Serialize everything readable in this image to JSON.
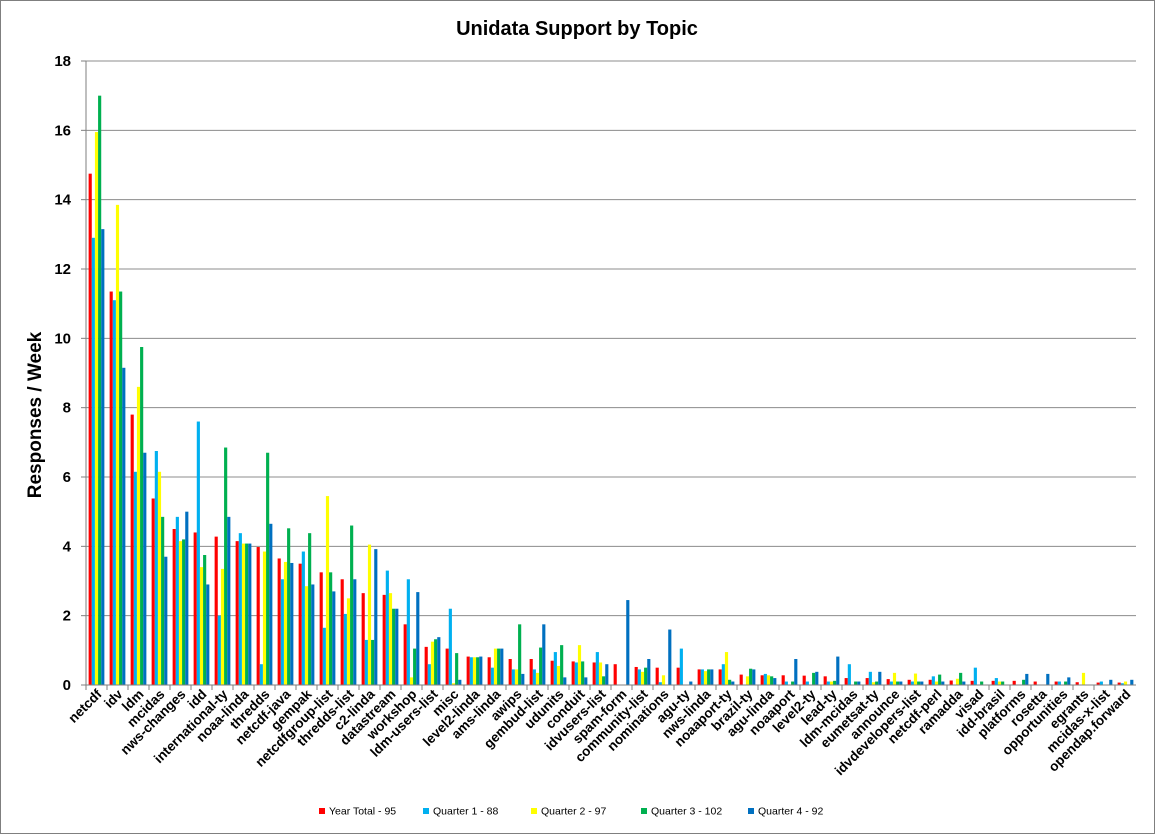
{
  "chart_data": {
    "type": "bar",
    "title": "Unidata Support by Topic",
    "xlabel": "",
    "ylabel": "Responses / Week",
    "ylim": [
      0,
      18
    ],
    "yticks": [
      0,
      2,
      4,
      6,
      8,
      10,
      12,
      14,
      16,
      18
    ],
    "grid": true,
    "legend_position": "bottom",
    "categories": [
      "netcdf",
      "idv",
      "ldm",
      "mcidas",
      "nws-changes",
      "idd",
      "international-ty",
      "noaa-linda",
      "thredds",
      "netcdf-java",
      "gempak",
      "netcdfgroup-list",
      "thredds-list",
      "c2-linda",
      "datastream",
      "workshop",
      "ldm-users-list",
      "misc",
      "level2-linda",
      "ams-linda",
      "awips",
      "gembud-list",
      "udunits",
      "conduit",
      "idvusers-list",
      "spam-form",
      "community-list",
      "nominations",
      "agu-ty",
      "nws-linda",
      "noaaport-ty",
      "brazil-ty",
      "agu-linda",
      "noaaport",
      "level2-ty",
      "lead-ty",
      "ldm-mcidas",
      "eumetsat-ty",
      "announce",
      "idvdevelopers-list",
      "netcdf-perl",
      "ramadda",
      "visad",
      "idd-brasil",
      "platforms",
      "rosetta",
      "opportunities",
      "egrants",
      "mcidas-x-list",
      "opendap.forward"
    ],
    "series": [
      {
        "name": "Year Total - 95",
        "color": "#ff0000",
        "values": [
          14.75,
          11.35,
          7.8,
          5.38,
          4.5,
          4.4,
          4.28,
          4.15,
          3.98,
          3.65,
          3.5,
          3.25,
          3.05,
          2.65,
          2.6,
          1.75,
          1.1,
          1.05,
          0.82,
          0.8,
          0.75,
          0.75,
          0.7,
          0.68,
          0.65,
          0.6,
          0.52,
          0.5,
          0.5,
          0.45,
          0.45,
          0.3,
          0.28,
          0.28,
          0.27,
          0.25,
          0.2,
          0.2,
          0.17,
          0.15,
          0.15,
          0.13,
          0.12,
          0.12,
          0.12,
          0.1,
          0.1,
          0.08,
          0.07,
          0.07
        ]
      },
      {
        "name": "Quarter 1 - 88",
        "color": "#00b0f0",
        "values": [
          12.9,
          11.1,
          6.15,
          6.75,
          4.85,
          7.6,
          2.0,
          4.38,
          0.6,
          3.05,
          3.85,
          1.65,
          2.05,
          1.3,
          3.3,
          3.05,
          0.6,
          2.2,
          0.8,
          0.5,
          0.45,
          0.45,
          0.95,
          0.65,
          0.95,
          0.0,
          0.45,
          0.08,
          1.05,
          0.45,
          0.6,
          0.0,
          0.32,
          0.1,
          0.1,
          0.1,
          0.6,
          0.38,
          0.1,
          0.1,
          0.25,
          0.0,
          0.5,
          0.2,
          0.0,
          0.0,
          0.1,
          0.0,
          0.1,
          0.05
        ]
      },
      {
        "name": "Quarter 2 - 97",
        "color": "#ffff00",
        "values": [
          15.95,
          13.85,
          8.6,
          6.15,
          4.15,
          3.4,
          3.35,
          4.08,
          3.85,
          3.55,
          2.85,
          5.45,
          2.5,
          4.05,
          2.65,
          0.22,
          1.25,
          0.05,
          0.8,
          1.05,
          0.45,
          0.35,
          0.55,
          1.15,
          0.65,
          0.0,
          0.38,
          0.28,
          0.0,
          0.4,
          0.95,
          0.25,
          0.28,
          0.0,
          0.0,
          0.1,
          0.0,
          0.08,
          0.35,
          0.33,
          0.1,
          0.18,
          0.0,
          0.1,
          0.0,
          0.0,
          0.0,
          0.35,
          0.0,
          0.1
        ]
      },
      {
        "name": "Quarter 3 - 102",
        "color": "#00b050",
        "values": [
          17.0,
          11.35,
          9.75,
          4.85,
          4.2,
          3.75,
          6.85,
          4.08,
          6.7,
          4.52,
          4.38,
          3.25,
          4.6,
          1.3,
          2.2,
          1.05,
          1.32,
          0.92,
          0.8,
          1.05,
          1.75,
          1.08,
          1.15,
          0.68,
          0.25,
          0.0,
          0.5,
          0.0,
          0.0,
          0.45,
          0.15,
          0.47,
          0.25,
          0.1,
          0.35,
          0.12,
          0.1,
          0.1,
          0.1,
          0.1,
          0.3,
          0.35,
          0.1,
          0.1,
          0.15,
          0.0,
          0.1,
          0.0,
          0.0,
          0.0
        ]
      },
      {
        "name": "Quarter 4 - 92",
        "color": "#0070c0",
        "values": [
          13.15,
          9.15,
          6.7,
          3.7,
          5.0,
          2.9,
          4.85,
          4.08,
          4.65,
          3.52,
          2.9,
          2.7,
          3.05,
          3.92,
          2.2,
          2.68,
          1.38,
          0.15,
          0.82,
          1.05,
          0.32,
          1.75,
          0.22,
          0.22,
          0.6,
          2.45,
          0.75,
          1.6,
          0.1,
          0.45,
          0.1,
          0.45,
          0.2,
          0.75,
          0.38,
          0.82,
          0.1,
          0.38,
          0.1,
          0.1,
          0.1,
          0.1,
          0.0,
          0.0,
          0.32,
          0.32,
          0.22,
          0.0,
          0.15,
          0.15
        ]
      }
    ]
  }
}
